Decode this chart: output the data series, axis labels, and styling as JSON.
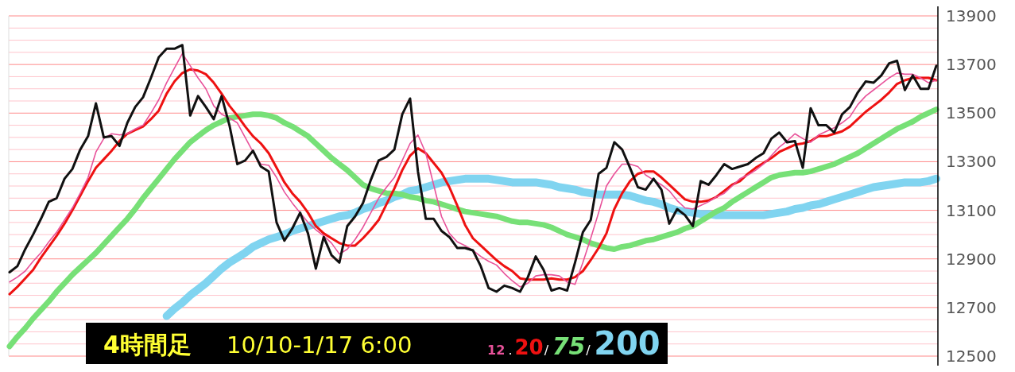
{
  "chart_data": {
    "type": "line",
    "title": "4時間足",
    "subtitle": "10/10-1/17 6:00",
    "categories": [
      null,
      null,
      null,
      null,
      null,
      null,
      null,
      null,
      null,
      null,
      null,
      null,
      null,
      null,
      null,
      null,
      null,
      null,
      null,
      null,
      null,
      null,
      null,
      null,
      null,
      null,
      null,
      null,
      null,
      null,
      null,
      null,
      null,
      null,
      null,
      null,
      null,
      null,
      null,
      null,
      null,
      null,
      null,
      null,
      null,
      null,
      null,
      null,
      null,
      null,
      null,
      null,
      null,
      null,
      null,
      null,
      null,
      null,
      null,
      null,
      null,
      null,
      null,
      null,
      null,
      null,
      null,
      null,
      null,
      null,
      null,
      null,
      null,
      null,
      null,
      null,
      null,
      null,
      null,
      null,
      null,
      null,
      null,
      null,
      null,
      null,
      null,
      null,
      null,
      null,
      null,
      null,
      null,
      null,
      null,
      null,
      null,
      null,
      null,
      null,
      null,
      null,
      null,
      null,
      null,
      null,
      null,
      null,
      null,
      null,
      null,
      null,
      null,
      null,
      null,
      null,
      null,
      null,
      null
    ],
    "series": [
      {
        "color": "#111111",
        "values": [
          12845,
          12870,
          12940,
          13000,
          13065,
          13135,
          13150,
          13230,
          13270,
          13350,
          13405,
          13540,
          13400,
          13405,
          13365,
          13460,
          13525,
          13565,
          13645,
          13730,
          13765,
          13765,
          13780,
          13490,
          13570,
          13525,
          13475,
          13570,
          13450,
          13290,
          13305,
          13345,
          13280,
          13260,
          13050,
          12975,
          13025,
          13090,
          13005,
          12860,
          12990,
          12915,
          12885,
          13035,
          13075,
          13130,
          13225,
          13305,
          13320,
          13350,
          13495,
          13560,
          13260,
          13065,
          13065,
          13015,
          12990,
          12945,
          12945,
          12935,
          12870,
          12780,
          12765,
          12790,
          12780,
          12765,
          12825,
          12910,
          12855,
          12770,
          12780,
          12770,
          12885,
          13010,
          13060,
          13250,
          13275,
          13380,
          13350,
          13275,
          13195,
          13185,
          13230,
          13185,
          13045,
          13105,
          13080,
          13035,
          13220,
          13205,
          13245,
          13290,
          13270,
          13280,
          13290,
          13315,
          13335,
          13395,
          13420,
          13380,
          13385,
          13275,
          13520,
          13450,
          13450,
          13420,
          13495,
          13525,
          13585,
          13630,
          13625,
          13655,
          13705,
          13715,
          13595,
          13655,
          13600,
          13600,
          13695
        ]
      },
      {
        "name": "12",
        "color": "#e8529a",
        "values": [
          12805,
          12825,
          12850,
          12890,
          12925,
          12970,
          13010,
          13060,
          13110,
          13170,
          13235,
          13340,
          13395,
          13415,
          13410,
          13415,
          13435,
          13450,
          13500,
          13555,
          13625,
          13685,
          13745,
          13695,
          13645,
          13600,
          13530,
          13495,
          13480,
          13460,
          13400,
          13340,
          13290,
          13285,
          13235,
          13175,
          13130,
          13090,
          13050,
          13020,
          12995,
          12965,
          12920,
          12940,
          12980,
          13030,
          13090,
          13150,
          13195,
          13235,
          13305,
          13375,
          13410,
          13335,
          13205,
          13075,
          13005,
          12970,
          12955,
          12935,
          12910,
          12890,
          12875,
          12840,
          12810,
          12785,
          12800,
          12830,
          12835,
          12835,
          12830,
          12805,
          12795,
          12885,
          12985,
          13090,
          13200,
          13250,
          13290,
          13290,
          13280,
          13245,
          13225,
          13205,
          13180,
          13140,
          13110,
          13105,
          13120,
          13135,
          13155,
          13170,
          13200,
          13230,
          13245,
          13265,
          13290,
          13325,
          13360,
          13385,
          13415,
          13395,
          13380,
          13410,
          13425,
          13440,
          13460,
          13485,
          13535,
          13570,
          13595,
          13620,
          13645,
          13665,
          13660,
          13660,
          13645,
          13625,
          13635
        ]
      },
      {
        "name": "20",
        "color": "#ee1111",
        "values": [
          12755,
          12785,
          12820,
          12855,
          12905,
          12950,
          12995,
          13045,
          13100,
          13160,
          13220,
          13275,
          13310,
          13345,
          13385,
          13415,
          13430,
          13445,
          13475,
          13510,
          13580,
          13630,
          13665,
          13680,
          13675,
          13660,
          13625,
          13580,
          13530,
          13490,
          13445,
          13405,
          13375,
          13335,
          13275,
          13215,
          13170,
          13135,
          13090,
          13035,
          13005,
          12985,
          12965,
          12955,
          12955,
          12985,
          13020,
          13060,
          13125,
          13190,
          13265,
          13325,
          13355,
          13335,
          13295,
          13255,
          13195,
          13120,
          13040,
          12985,
          12955,
          12925,
          12895,
          12870,
          12850,
          12820,
          12815,
          12815,
          12815,
          12820,
          12815,
          12815,
          12825,
          12850,
          12895,
          12945,
          13005,
          13105,
          13170,
          13220,
          13250,
          13260,
          13260,
          13235,
          13205,
          13175,
          13145,
          13135,
          13135,
          13140,
          13155,
          13180,
          13205,
          13220,
          13250,
          13275,
          13295,
          13315,
          13340,
          13355,
          13370,
          13375,
          13385,
          13405,
          13405,
          13415,
          13425,
          13445,
          13475,
          13505,
          13530,
          13555,
          13585,
          13620,
          13635,
          13645,
          13645,
          13645,
          13635
        ]
      },
      {
        "name": "75",
        "color": "#77e077",
        "values": [
          12540,
          12580,
          12615,
          12655,
          12690,
          12725,
          12765,
          12800,
          12835,
          12865,
          12895,
          12925,
          12960,
          12995,
          13030,
          13065,
          13105,
          13150,
          13190,
          13230,
          13270,
          13310,
          13345,
          13380,
          13405,
          13430,
          13450,
          13465,
          13480,
          13485,
          13490,
          13495,
          13495,
          13490,
          13480,
          13460,
          13445,
          13425,
          13405,
          13375,
          13345,
          13315,
          13290,
          13265,
          13235,
          13205,
          13190,
          13180,
          13170,
          13170,
          13165,
          13155,
          13150,
          13140,
          13135,
          13125,
          13115,
          13105,
          13095,
          13090,
          13085,
          13080,
          13075,
          13065,
          13055,
          13050,
          13050,
          13045,
          13040,
          13030,
          13015,
          13000,
          12990,
          12980,
          12965,
          12955,
          12945,
          12940,
          12950,
          12955,
          12965,
          12975,
          12980,
          12990,
          13000,
          13010,
          13025,
          13035,
          13055,
          13075,
          13095,
          13110,
          13135,
          13155,
          13175,
          13195,
          13215,
          13235,
          13245,
          13250,
          13255,
          13255,
          13260,
          13270,
          13280,
          13290,
          13305,
          13320,
          13335,
          13355,
          13375,
          13395,
          13415,
          13435,
          13450,
          13465,
          13485,
          13500,
          13515
        ]
      },
      {
        "name": "200",
        "color": "#80d4f0",
        "values": [
          null,
          null,
          null,
          null,
          null,
          null,
          null,
          null,
          null,
          null,
          null,
          null,
          null,
          null,
          null,
          null,
          null,
          null,
          null,
          null,
          12665,
          12695,
          12720,
          12750,
          12775,
          12800,
          12830,
          12860,
          12885,
          12905,
          12925,
          12950,
          12965,
          12980,
          12990,
          13000,
          13015,
          13025,
          13035,
          13045,
          13055,
          13065,
          13075,
          13080,
          13090,
          13105,
          13115,
          13130,
          13140,
          13155,
          13165,
          13180,
          13185,
          13195,
          13205,
          13215,
          13220,
          13225,
          13230,
          13230,
          13230,
          13230,
          13225,
          13220,
          13215,
          13215,
          13215,
          13215,
          13210,
          13205,
          13195,
          13190,
          13185,
          13175,
          13170,
          13165,
          13165,
          13165,
          13165,
          13160,
          13150,
          13140,
          13135,
          13125,
          13110,
          13100,
          13095,
          13090,
          13085,
          13085,
          13080,
          13080,
          13080,
          13080,
          13080,
          13080,
          13080,
          13085,
          13090,
          13095,
          13105,
          13110,
          13120,
          13125,
          13135,
          13145,
          13155,
          13165,
          13175,
          13185,
          13195,
          13200,
          13205,
          13210,
          13215,
          13215,
          13215,
          13220,
          13230
        ]
      }
    ],
    "ylim": [
      12500,
      13900
    ],
    "yticks": [
      12500,
      {
        "value": 12550,
        "label": null
      },
      {
        "value": 12600,
        "label": null
      },
      {
        "value": 12650,
        "label": null
      },
      12700,
      {
        "value": 12750,
        "label": null
      },
      {
        "value": 12800,
        "label": null
      },
      {
        "value": 12850,
        "label": null
      },
      12900,
      {
        "value": 12950,
        "label": null
      },
      {
        "value": 13000,
        "label": null
      },
      {
        "value": 13050,
        "label": null
      },
      13100,
      {
        "value": 13150,
        "label": null
      },
      {
        "value": 13200,
        "label": null
      },
      {
        "value": 13250,
        "label": null
      },
      13300,
      {
        "value": 13350,
        "label": null
      },
      {
        "value": 13400,
        "label": null
      },
      {
        "value": 13450,
        "label": null
      },
      13500,
      {
        "value": 13550,
        "label": null
      },
      {
        "value": 13600,
        "label": null
      },
      {
        "value": 13650,
        "label": null
      },
      13700,
      {
        "value": 13750,
        "label": null
      },
      {
        "value": 13800,
        "label": null
      },
      {
        "value": 13850,
        "label": null
      },
      13900
    ],
    "grid": "y",
    "tick_labels": "y",
    "legend": "bottom",
    "annotations": [
      ".",
      "/",
      "/"
    ]
  }
}
